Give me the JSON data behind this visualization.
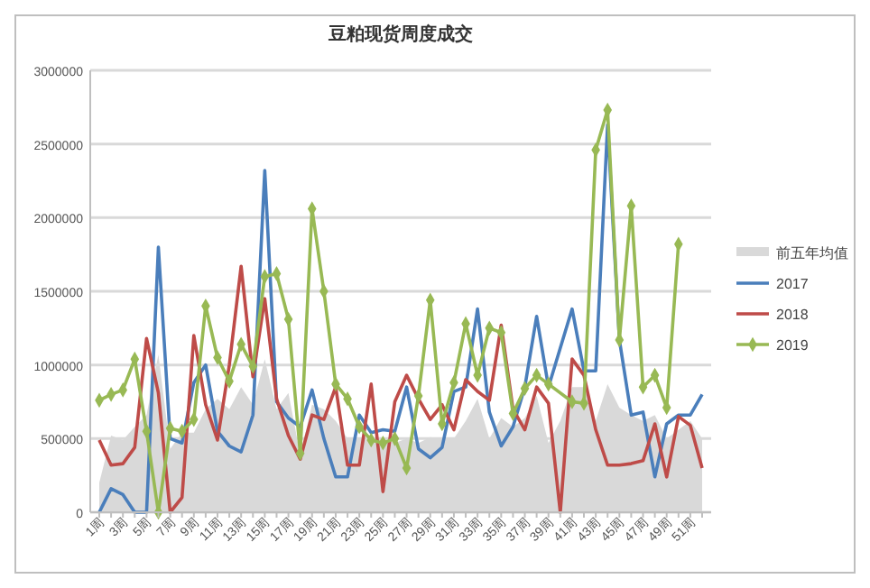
{
  "chart_data": {
    "type": "line",
    "title": "豆粕现货周度成交",
    "categories": [
      "1周",
      null,
      "3周",
      null,
      "5周",
      null,
      "7周",
      null,
      "9周",
      null,
      "11周",
      null,
      "13周",
      null,
      "15周",
      null,
      "17周",
      null,
      "19周",
      null,
      "21周",
      null,
      "23周",
      null,
      "25周",
      null,
      "27周",
      null,
      "29周",
      null,
      "31周",
      null,
      "33周",
      null,
      "35周",
      null,
      "37周",
      null,
      "39周",
      null,
      "41周",
      null,
      "43周",
      null,
      "45周",
      null,
      "47周",
      null,
      "49周",
      null,
      "51周",
      null
    ],
    "ylim": [
      0,
      3000000
    ],
    "yticks": [
      0,
      500000,
      1000000,
      1500000,
      2000000,
      2500000,
      3000000
    ],
    "grid": "y",
    "legend": "right",
    "series": [
      {
        "name": "前五年均值",
        "type": "area",
        "color": "#d9d9d9",
        "values": [
          200000,
          520000,
          490000,
          580000,
          660000,
          1070000,
          430000,
          540000,
          540000,
          700000,
          770000,
          700000,
          850000,
          730000,
          1040000,
          700000,
          810000,
          390000,
          730000,
          700000,
          620000,
          500000,
          500000,
          490000,
          500000,
          470000,
          500000,
          470000,
          510000,
          500000,
          500000,
          620000,
          770000,
          500000,
          640000,
          580000,
          640000,
          790000,
          470000,
          620000,
          850000,
          850000,
          620000,
          870000,
          710000,
          660000,
          620000,
          660000,
          500000,
          560000,
          620000,
          500000
        ]
      },
      {
        "name": "2017",
        "color": "#4a7ebb",
        "marker": "none",
        "values": [
          0,
          160000,
          120000,
          0,
          0,
          1800000,
          500000,
          470000,
          880000,
          1000000,
          550000,
          450000,
          410000,
          660000,
          2320000,
          750000,
          640000,
          580000,
          830000,
          500000,
          240000,
          240000,
          660000,
          540000,
          560000,
          550000,
          850000,
          430000,
          370000,
          440000,
          820000,
          850000,
          1380000,
          680000,
          450000,
          580000,
          850000,
          1330000,
          850000,
          null,
          1380000,
          960000,
          960000,
          2630000,
          1170000,
          660000,
          680000,
          240000,
          600000,
          660000,
          660000,
          800000
        ]
      },
      {
        "name": "2018",
        "color": "#be4b48",
        "marker": "none",
        "values": [
          490000,
          320000,
          330000,
          440000,
          1180000,
          810000,
          0,
          100000,
          1200000,
          730000,
          490000,
          1000000,
          1670000,
          920000,
          1450000,
          770000,
          520000,
          360000,
          660000,
          630000,
          850000,
          320000,
          320000,
          870000,
          140000,
          750000,
          930000,
          770000,
          630000,
          730000,
          560000,
          900000,
          820000,
          760000,
          1270000,
          700000,
          560000,
          850000,
          740000,
          0,
          1040000,
          930000,
          560000,
          320000,
          320000,
          330000,
          350000,
          600000,
          240000,
          650000,
          590000,
          300000
        ]
      },
      {
        "name": "2019",
        "color": "#98b954",
        "marker": "diamond",
        "values": [
          760000,
          800000,
          830000,
          1040000,
          550000,
          0,
          570000,
          550000,
          630000,
          1400000,
          1050000,
          890000,
          1140000,
          990000,
          1600000,
          1620000,
          1310000,
          400000,
          2060000,
          1500000,
          870000,
          770000,
          580000,
          490000,
          470000,
          500000,
          300000,
          790000,
          1440000,
          600000,
          880000,
          1280000,
          930000,
          1250000,
          1220000,
          670000,
          840000,
          930000,
          870000,
          null,
          750000,
          740000,
          2460000,
          2730000,
          1170000,
          2080000,
          850000,
          930000,
          710000,
          1820000,
          null,
          null
        ]
      }
    ]
  }
}
